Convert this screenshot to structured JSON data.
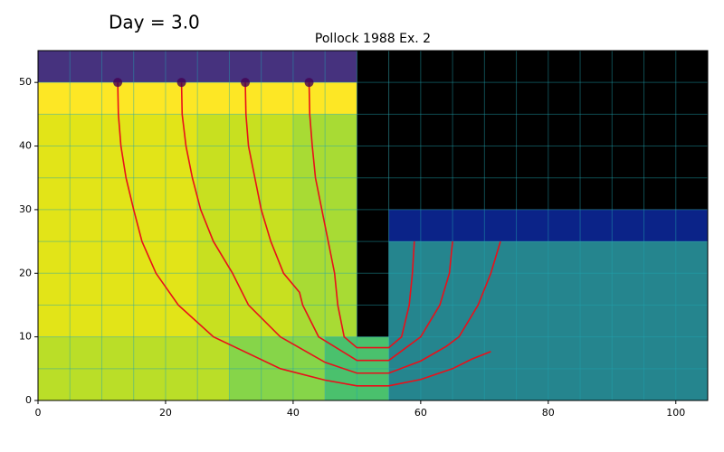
{
  "chart_data": {
    "type": "pathline",
    "suptitle": "Day = 3.0",
    "title": "Pollock 1988 Ex. 2",
    "xlim": [
      0,
      105
    ],
    "ylim": [
      0,
      55
    ],
    "xticks": [
      0,
      20,
      40,
      60,
      80,
      100
    ],
    "yticks": [
      0,
      10,
      20,
      30,
      40,
      50
    ],
    "cell_size": 5,
    "cells": [
      {
        "x": [
          0,
          50
        ],
        "y": [
          50,
          55
        ],
        "color": "#46327e"
      },
      {
        "x": [
          0,
          50
        ],
        "y": [
          45,
          50
        ],
        "color": "#fde725"
      },
      {
        "x": [
          0,
          25
        ],
        "y": [
          10,
          45
        ],
        "color": "#e2e418"
      },
      {
        "x": [
          25,
          40
        ],
        "y": [
          10,
          45
        ],
        "color": "#c8e020"
      },
      {
        "x": [
          40,
          50
        ],
        "y": [
          10,
          45
        ],
        "color": "#a8db34"
      },
      {
        "x": [
          0,
          30
        ],
        "y": [
          0,
          10
        ],
        "color": "#bade28"
      },
      {
        "x": [
          30,
          45
        ],
        "y": [
          0,
          10
        ],
        "color": "#86d549"
      },
      {
        "x": [
          45,
          55
        ],
        "y": [
          0,
          10
        ],
        "color": "#4ac16d"
      },
      {
        "x": [
          50,
          55
        ],
        "y": [
          10,
          55
        ],
        "color": "#000000"
      },
      {
        "x": [
          55,
          105
        ],
        "y": [
          30,
          55
        ],
        "color": "#000000"
      },
      {
        "x": [
          55,
          105
        ],
        "y": [
          25,
          30
        ],
        "color": "#0b2388"
      },
      {
        "x": [
          55,
          105
        ],
        "y": [
          0,
          25
        ],
        "color": "#25858e"
      }
    ],
    "line_color": "#e8101a",
    "marker_color": "#440154",
    "series": [
      {
        "x": [
          12.5,
          12.6,
          13,
          13.8,
          15,
          16.3,
          18.5,
          22,
          27.5,
          38,
          45,
          50,
          55,
          60,
          65,
          68,
          71
        ],
        "values": [
          50,
          45,
          40,
          35,
          30,
          25,
          20,
          15,
          10,
          5,
          3.2,
          2.3,
          2.3,
          3.3,
          5,
          6.5,
          7.7
        ]
      },
      {
        "x": [
          22.5,
          22.6,
          23.2,
          24.2,
          25.5,
          27.5,
          30.5,
          33,
          38,
          45,
          50,
          55,
          60,
          64,
          66,
          69,
          71,
          72.5
        ],
        "values": [
          50,
          45,
          40,
          35,
          30,
          25,
          20,
          15,
          10,
          6,
          4.3,
          4.3,
          6.2,
          8.5,
          10,
          15,
          20,
          25
        ]
      },
      {
        "x": [
          32.5,
          32.6,
          33,
          34,
          35,
          36.5,
          38.5,
          41,
          41.5,
          44,
          50,
          55,
          60,
          63,
          64.5,
          65
        ],
        "values": [
          50,
          45,
          40,
          35,
          30,
          25,
          20,
          17,
          15,
          10,
          6.3,
          6.3,
          10,
          15,
          20,
          25
        ]
      },
      {
        "x": [
          42.5,
          42.6,
          43,
          43.5,
          44.5,
          45.5,
          46.5,
          47,
          48,
          50,
          55,
          57,
          58.2,
          58.7,
          59
        ],
        "values": [
          50,
          45,
          40,
          35,
          30,
          25,
          20,
          15,
          10,
          8.3,
          8.3,
          10,
          15,
          20,
          25
        ]
      }
    ]
  }
}
